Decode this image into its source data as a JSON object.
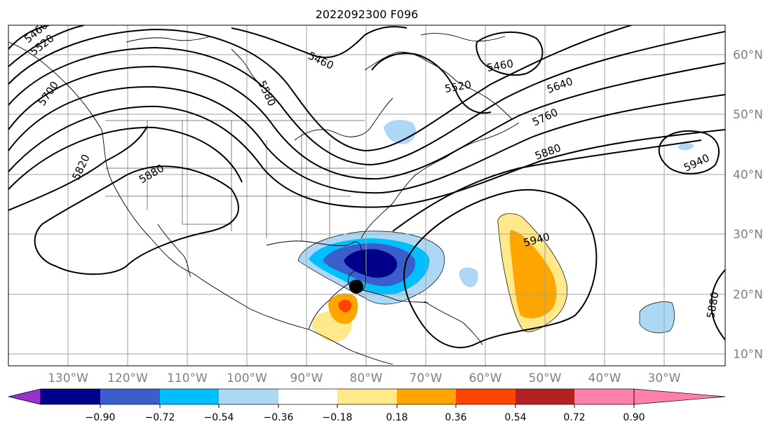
{
  "title": "2022092300 F096",
  "lat_labels": [
    "60°N",
    "50°N",
    "40°N",
    "30°N",
    "20°N",
    "10°N"
  ],
  "lon_labels": [
    "130°W",
    "120°W",
    "110°W",
    "100°W",
    "90°W",
    "80°W",
    "70°W",
    "60°W",
    "50°W",
    "40°W",
    "30°W"
  ],
  "colorbar": {
    "tick_labels": [
      "−0.90",
      "−0.72",
      "−0.54",
      "−0.36",
      "−0.18",
      "0.18",
      "0.36",
      "0.54",
      "0.72",
      "0.90"
    ],
    "colors": [
      "#9932cc",
      "#00008b",
      "#3a5fcd",
      "#00bfff",
      "#add8f5",
      "#ffffff",
      "#ffe98a",
      "#ffa500",
      "#ff4500",
      "#b22222",
      "#ff80aa"
    ]
  },
  "contour_labels": [
    "5460",
    "5520",
    "5460",
    "5580",
    "5460",
    "5520",
    "5640",
    "5760",
    "5880",
    "5940",
    "5820",
    "5880",
    "5700",
    "5940",
    "5880"
  ],
  "marker": "storm-center-dot",
  "grid": true
}
